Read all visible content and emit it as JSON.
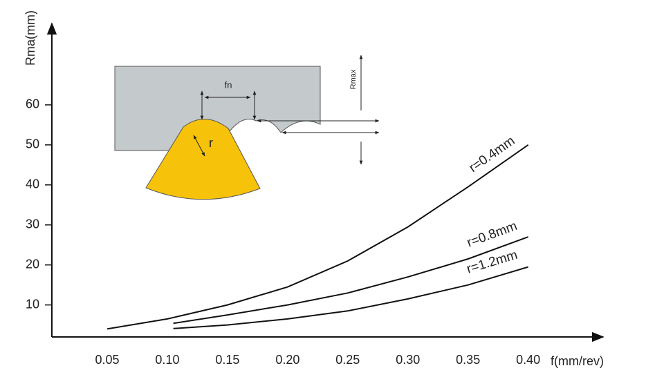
{
  "chart_data": {
    "type": "line",
    "x_label": "f(mm/rev)",
    "y_label": "Rma(mm)",
    "xlim": [
      0.004,
      0.46
    ],
    "ylim": [
      2,
      80
    ],
    "xticks": [
      0.05,
      {
        "value": 0.1,
        "label": "0.10"
      },
      0.15,
      {
        "value": 0.2,
        "label": "0.20"
      },
      0.25,
      {
        "value": 0.3,
        "label": "0.30"
      },
      0.35,
      {
        "value": 0.4,
        "label": "0.40"
      }
    ],
    "yticks": [
      10,
      20,
      30,
      40,
      50,
      60
    ],
    "grid": false,
    "series": [
      {
        "name": "r=0.4mm",
        "color": "#111111",
        "x": [
          0.05,
          0.1,
          0.15,
          0.2,
          0.25,
          0.3,
          0.35,
          0.4
        ],
        "values": [
          4,
          6.5,
          10,
          14.5,
          21,
          29.5,
          39.5,
          50
        ]
      },
      {
        "name": "r=0.8mm",
        "color": "#111111",
        "x": [
          0.105,
          0.15,
          0.2,
          0.25,
          0.3,
          0.35,
          0.4
        ],
        "values": [
          5.4,
          7.5,
          10,
          13,
          17,
          21.5,
          27
        ]
      },
      {
        "name": "r=1.2mm",
        "color": "#111111",
        "x": [
          0.105,
          0.15,
          0.2,
          0.25,
          0.3,
          0.35,
          0.4
        ],
        "values": [
          4.1,
          5,
          6.5,
          8.5,
          11.5,
          15,
          19.5
        ]
      }
    ],
    "inset_labels": {
      "feed": "fn",
      "radius": "r",
      "height": "Rmax"
    }
  }
}
